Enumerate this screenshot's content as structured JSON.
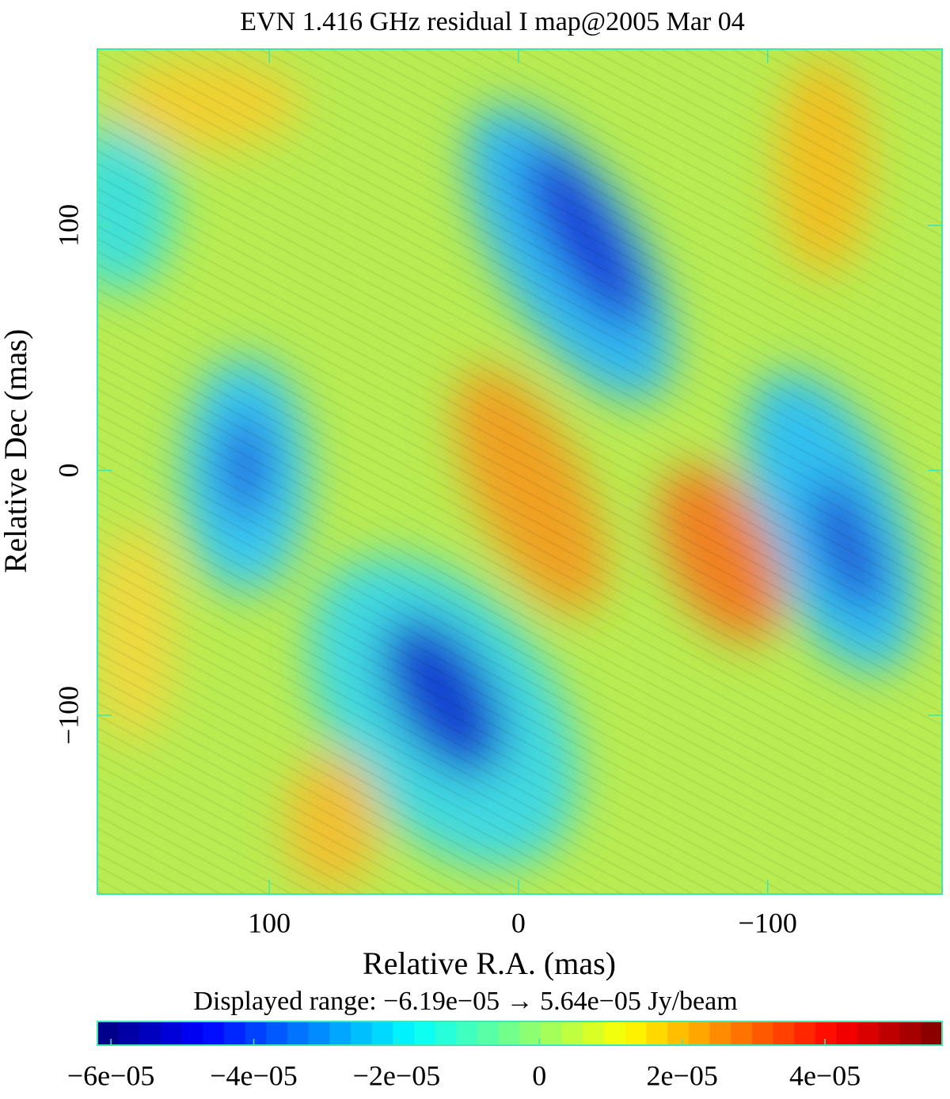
{
  "chart_data": {
    "type": "image",
    "title": "EVN 1.416 GHz residual I map@2005 Mar 04",
    "x_label": "Relative R.A. (mas)",
    "y_label": "Relative Dec (mas)",
    "xlim": [
      169,
      -170
    ],
    "ylim": [
      -173,
      172
    ],
    "xticks": [
      100,
      0,
      {
        "value": -100,
        "label": "−100"
      }
    ],
    "yticks": [
      {
        "value": -100,
        "label": "−100"
      },
      0,
      100
    ],
    "colorbar_title": "Displayed range: −6.19e−05 → 5.64e−05 Jy/beam",
    "colormap": "jet",
    "colorbar_lim": [
      -6.19e-05,
      5.64e-05
    ],
    "colorbar_ticks": [
      {
        "value": -6e-05,
        "label": "−6e−05"
      },
      {
        "value": -4e-05,
        "label": "−4e−05"
      },
      {
        "value": -2e-05,
        "label": "−2e−05"
      },
      0,
      {
        "value": 2e-05,
        "label": "2e−05"
      },
      {
        "value": 4e-05,
        "label": "4e−05"
      }
    ]
  }
}
